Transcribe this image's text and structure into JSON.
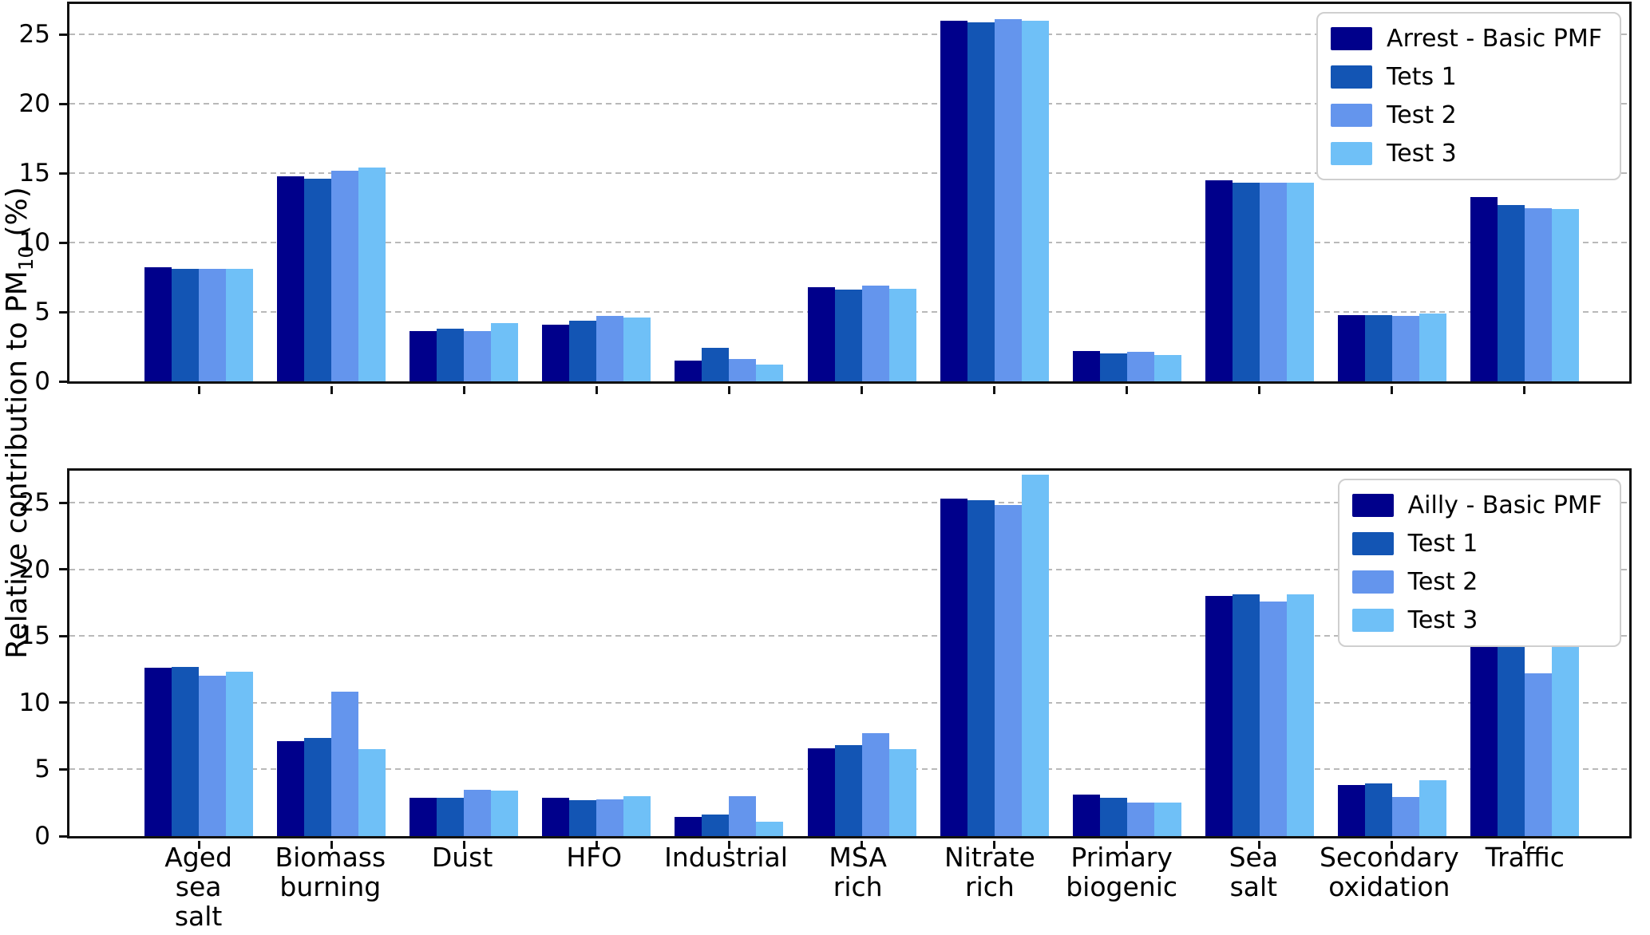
{
  "figure": {
    "ylabel": {
      "pre": "Relative contribution to PM",
      "sub": "10",
      "post": " (%)"
    }
  },
  "colors": {
    "basic_pmf": "#00008B",
    "test1": "#1355B4",
    "test2": "#6495ED",
    "test3": "#6FC0F7",
    "gridline": "#B9B9B9",
    "axis": "#111111"
  },
  "category_label_lines": [
    [
      "Aged",
      "sea",
      "salt"
    ],
    [
      "Biomass",
      "burning"
    ],
    [
      "Dust"
    ],
    [
      "HFO"
    ],
    [
      "Industrial"
    ],
    [
      "MSA",
      "rich"
    ],
    [
      "Nitrate",
      "rich"
    ],
    [
      "Primary",
      "biogenic"
    ],
    [
      "Sea",
      "salt"
    ],
    [
      "Secondary",
      "oxidation"
    ],
    [
      "Traffic"
    ]
  ],
  "chart_data": [
    {
      "type": "bar",
      "panel": "top",
      "categories": [
        "Aged sea salt",
        "Biomass burning",
        "Dust",
        "HFO",
        "Industrial",
        "MSA rich",
        "Nitrate rich",
        "Primary biogenic",
        "Sea salt",
        "Secondary oxidation",
        "Traffic"
      ],
      "series": [
        {
          "name": "Arrest - Basic PMF",
          "color": "#00008B",
          "values": [
            8.2,
            14.8,
            3.6,
            4.1,
            1.5,
            6.8,
            26.0,
            2.2,
            14.5,
            4.8,
            13.3
          ]
        },
        {
          "name": "Tets 1",
          "color": "#1355B4",
          "values": [
            8.1,
            14.6,
            3.8,
            4.4,
            2.4,
            6.6,
            25.9,
            2.0,
            14.3,
            4.8,
            12.7
          ]
        },
        {
          "name": "Test 2",
          "color": "#6495ED",
          "values": [
            8.1,
            15.2,
            3.6,
            4.7,
            1.6,
            6.9,
            26.1,
            2.1,
            14.3,
            4.7,
            12.5
          ]
        },
        {
          "name": "Test 3",
          "color": "#6FC0F7",
          "values": [
            8.1,
            15.4,
            4.2,
            4.6,
            1.2,
            6.7,
            26.0,
            1.9,
            14.3,
            4.9,
            12.4
          ]
        }
      ],
      "ylabel": "Relative contribution to PM10 (%)",
      "yticks": [
        0,
        5,
        10,
        15,
        20,
        25
      ],
      "ylim": [
        0,
        27.2
      ],
      "grid": "horizontal dashed",
      "legend_position": "upper right"
    },
    {
      "type": "bar",
      "panel": "bottom",
      "categories": [
        "Aged sea salt",
        "Biomass burning",
        "Dust",
        "HFO",
        "Industrial",
        "MSA rich",
        "Nitrate rich",
        "Primary biogenic",
        "Sea salt",
        "Secondary oxidation",
        "Traffic"
      ],
      "series": [
        {
          "name": "Ailly - Basic PMF",
          "color": "#00008B",
          "values": [
            12.6,
            7.1,
            2.9,
            2.9,
            1.45,
            6.6,
            25.3,
            3.1,
            18.0,
            3.85,
            16.0
          ]
        },
        {
          "name": "Test 1",
          "color": "#1355B4",
          "values": [
            12.7,
            7.35,
            2.9,
            2.7,
            1.6,
            6.8,
            25.2,
            2.9,
            18.1,
            3.95,
            15.5
          ]
        },
        {
          "name": "Test 2",
          "color": "#6495ED",
          "values": [
            12.0,
            10.8,
            3.5,
            2.75,
            3.0,
            7.7,
            24.8,
            2.5,
            17.6,
            2.95,
            12.2
          ]
        },
        {
          "name": "Test 3",
          "color": "#6FC0F7",
          "values": [
            12.3,
            6.5,
            3.4,
            3.0,
            1.05,
            6.5,
            27.1,
            2.5,
            18.1,
            4.2,
            15.1
          ]
        }
      ],
      "ylabel": "Relative contribution to PM10 (%)",
      "yticks": [
        0,
        5,
        10,
        15,
        20,
        25
      ],
      "ylim": [
        0,
        27.4
      ],
      "grid": "horizontal dashed",
      "legend_position": "upper right"
    }
  ]
}
